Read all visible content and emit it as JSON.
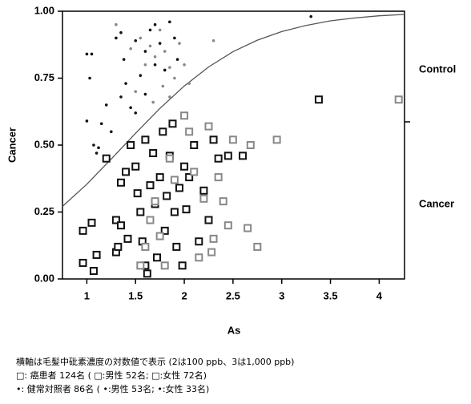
{
  "chart_data": {
    "type": "scatter",
    "x_label": "As",
    "y_label": "Cancer",
    "annotations": [
      "Control",
      "Cancer"
    ],
    "notes": [
      "横軸は毛髪中砒素濃度の対数値で表示 (2は100 ppb、3は1,000 ppb)",
      "□: 癌患者 124名 ( □:男性 52名; □:女性 72名)",
      "•: 健常対照者 86名 ( •:男性 53名; •:女性 33名)"
    ],
    "xlim": [
      0.75,
      4.26
    ],
    "ylim": [
      0,
      1
    ],
    "xticks": [
      1,
      1.5,
      2,
      2.5,
      3,
      3.5,
      4
    ],
    "yticks": [
      {
        "value": 0,
        "label": "0.00"
      },
      {
        "value": 0.25,
        "label": "0.25"
      },
      {
        "value": 0.5,
        "label": "0.50"
      },
      {
        "value": 0.75,
        "label": "0.75"
      },
      {
        "value": 1,
        "label": "1.00"
      }
    ],
    "series": [
      {
        "color": "#111111",
        "marker": "dot",
        "x": [
          1.0,
          1.05,
          1.0,
          1.03,
          1.07,
          1.1,
          1.12,
          1.15,
          1.25,
          1.3,
          1.35,
          1.38,
          1.4,
          1.45,
          1.5,
          1.55,
          1.6,
          1.65,
          1.7,
          1.75,
          1.8,
          1.85,
          1.9,
          1.93,
          1.2,
          1.35,
          3.3,
          1.6,
          1.7,
          1.5
        ],
        "values": [
          0.84,
          0.84,
          0.59,
          0.75,
          0.5,
          0.47,
          0.49,
          0.58,
          0.55,
          0.9,
          0.92,
          0.82,
          0.73,
          0.64,
          0.62,
          0.76,
          0.85,
          0.93,
          0.95,
          0.88,
          0.78,
          0.96,
          0.9,
          0.82,
          0.65,
          0.68,
          0.98,
          0.69,
          0.8,
          0.89
        ]
      },
      {
        "color": "#888888",
        "marker": "dot",
        "x": [
          1.3,
          1.45,
          1.55,
          1.65,
          1.7,
          1.75,
          1.8,
          1.85,
          1.9,
          1.95,
          2.0,
          2.3,
          1.6,
          1.78,
          1.68,
          1.85,
          1.5,
          2.05
        ],
        "values": [
          0.95,
          0.86,
          0.9,
          0.87,
          0.83,
          0.93,
          0.85,
          0.79,
          0.75,
          0.88,
          0.8,
          0.89,
          0.8,
          0.72,
          0.66,
          0.68,
          0.7,
          0.73
        ]
      },
      {
        "color": "#111111",
        "marker": "square",
        "x": [
          0.96,
          0.96,
          1.05,
          1.07,
          1.1,
          1.2,
          1.3,
          1.3,
          1.35,
          1.35,
          1.4,
          1.42,
          1.45,
          1.5,
          1.52,
          1.55,
          1.57,
          1.6,
          1.62,
          1.65,
          1.68,
          1.7,
          1.72,
          1.75,
          1.78,
          1.8,
          1.82,
          1.85,
          1.88,
          1.9,
          1.92,
          1.95,
          1.98,
          2.0,
          2.02,
          2.05,
          2.1,
          2.15,
          2.2,
          2.25,
          2.3,
          2.35,
          2.45,
          2.6,
          3.38,
          1.32,
          1.6
        ],
        "values": [
          0.18,
          0.06,
          0.21,
          0.03,
          0.09,
          0.45,
          0.22,
          0.1,
          0.36,
          0.2,
          0.4,
          0.15,
          0.5,
          0.42,
          0.32,
          0.25,
          0.14,
          0.05,
          0.02,
          0.35,
          0.47,
          0.28,
          0.08,
          0.38,
          0.55,
          0.18,
          0.31,
          0.46,
          0.58,
          0.25,
          0.12,
          0.34,
          0.05,
          0.42,
          0.26,
          0.38,
          0.5,
          0.14,
          0.33,
          0.22,
          0.52,
          0.45,
          0.46,
          0.46,
          0.67,
          0.12,
          0.52
        ]
      },
      {
        "color": "#888888",
        "marker": "square",
        "x": [
          1.55,
          1.6,
          1.7,
          1.75,
          1.85,
          1.9,
          2.0,
          2.05,
          2.1,
          2.2,
          2.25,
          2.28,
          2.3,
          2.35,
          2.4,
          2.45,
          2.5,
          2.65,
          2.68,
          2.75,
          2.95,
          4.2,
          1.65,
          1.8,
          2.15
        ],
        "values": [
          0.05,
          0.12,
          0.29,
          0.16,
          0.45,
          0.37,
          0.61,
          0.55,
          0.4,
          0.3,
          0.57,
          0.1,
          0.15,
          0.38,
          0.29,
          0.2,
          0.52,
          0.19,
          0.5,
          0.12,
          0.52,
          0.67,
          0.22,
          0.05,
          0.08
        ]
      }
    ],
    "curve": {
      "color": "#555555",
      "x": [
        0.75,
        1,
        1.25,
        1.5,
        1.75,
        2,
        2.25,
        2.5,
        2.75,
        3,
        3.25,
        3.5,
        3.75,
        4,
        4.26
      ],
      "values": [
        0.271,
        0.354,
        0.448,
        0.544,
        0.637,
        0.721,
        0.792,
        0.849,
        0.892,
        0.924,
        0.947,
        0.964,
        0.975,
        0.983,
        0.988
      ]
    }
  }
}
